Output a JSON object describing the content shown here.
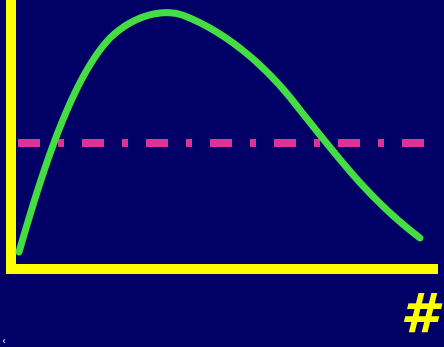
{
  "colors": {
    "background": "#000066",
    "axes": "#ffff00",
    "curve": "#44dd44",
    "threshold": "#dd3399"
  },
  "axis_label": "#",
  "corner_mark": "‹",
  "diagram": {
    "description_free": true,
    "curve_shape": "rise-peak-fall",
    "threshold_style": "dash-dot"
  }
}
